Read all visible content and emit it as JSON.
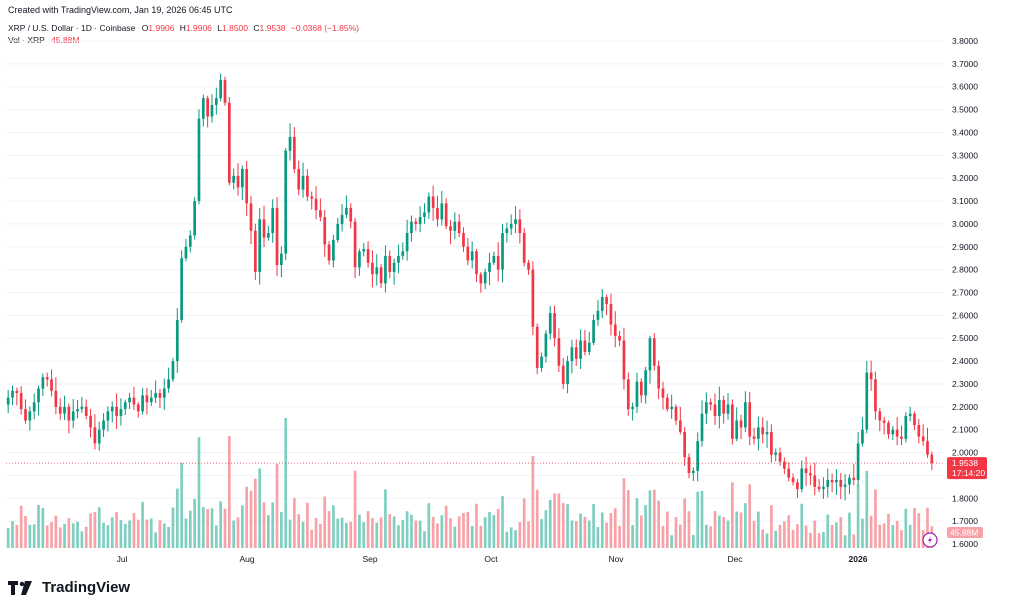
{
  "header": {
    "created_text": "Created with TradingView.com, Jan 19, 2026 06:45 UTC"
  },
  "legend": {
    "symbol": "XRP / U.S. Dollar · 1D · Coinbase",
    "open_label": "O",
    "open": "1.9906",
    "high_label": "H",
    "high": "1.9906",
    "low_label": "L",
    "low": "1.8500",
    "close_label": "C",
    "close": "1.9538",
    "change": "−0.0368 (−1.85%)",
    "vol_label": "Vol · XRP",
    "vol_value": "45.88M"
  },
  "price_tag": {
    "price": "1.9538",
    "countdown": "17:14:20"
  },
  "volume_tag": "45.88M",
  "brand": {
    "name": "TradingView"
  },
  "colors": {
    "up": "#089981",
    "down": "#f23645",
    "up_vol": "#7fcfc1",
    "down_vol": "#f8a2a8"
  },
  "chart_data": {
    "type": "candlestick",
    "y_axis_ticks": [
      "3.8000",
      "3.7000",
      "3.6000",
      "3.5000",
      "3.4000",
      "3.3000",
      "3.2000",
      "3.1000",
      "3.0000",
      "2.9000",
      "2.8000",
      "2.7000",
      "2.6000",
      "2.5000",
      "2.4000",
      "2.3000",
      "2.2000",
      "2.1000",
      "2.0000",
      "1.9000",
      "1.8000",
      "1.7000",
      "1.6000"
    ],
    "y_range": [
      1.6,
      3.8
    ],
    "x_axis_labels": [
      "Jul",
      "Aug",
      "Sep",
      "Oct",
      "Nov",
      "Dec",
      "2026"
    ],
    "x_axis_label_bold": "2026",
    "last_price": 1.9538,
    "close_series": [
      2.24,
      2.27,
      2.26,
      2.19,
      2.14,
      2.18,
      2.22,
      2.28,
      2.33,
      2.32,
      2.27,
      2.2,
      2.17,
      2.2,
      2.14,
      2.18,
      2.19,
      2.2,
      2.16,
      2.11,
      2.04,
      2.1,
      2.14,
      2.18,
      2.2,
      2.16,
      2.19,
      2.22,
      2.24,
      2.21,
      2.18,
      2.25,
      2.22,
      2.24,
      2.26,
      2.24,
      2.28,
      2.32,
      2.4,
      2.58,
      2.85,
      2.9,
      2.95,
      3.1,
      3.46,
      3.55,
      3.47,
      3.52,
      3.55,
      3.63,
      3.53,
      3.18,
      3.21,
      3.16,
      3.24,
      3.09,
      2.97,
      2.79,
      3.02,
      2.94,
      2.96,
      3.07,
      2.82,
      2.87,
      3.32,
      3.38,
      3.24,
      3.15,
      3.21,
      3.12,
      3.11,
      3.06,
      3.03,
      2.91,
      2.84,
      2.93,
      3.0,
      3.04,
      3.07,
      3.01,
      2.81,
      2.88,
      2.89,
      2.83,
      2.78,
      2.81,
      2.74,
      2.86,
      2.79,
      2.83,
      2.86,
      2.88,
      2.96,
      3.01,
      3.0,
      3.03,
      3.05,
      3.12,
      3.07,
      3.02,
      3.09,
      2.99,
      2.97,
      3.01,
      2.96,
      2.9,
      2.84,
      2.88,
      2.78,
      2.74,
      2.79,
      2.83,
      2.86,
      2.8,
      2.96,
      2.98,
      3.0,
      3.02,
      2.96,
      2.83,
      2.8,
      2.55,
      2.37,
      2.42,
      2.52,
      2.61,
      2.5,
      2.38,
      2.3,
      2.4,
      2.46,
      2.41,
      2.49,
      2.44,
      2.48,
      2.58,
      2.62,
      2.68,
      2.65,
      2.56,
      2.51,
      2.49,
      2.32,
      2.19,
      2.2,
      2.31,
      2.25,
      2.36,
      2.5,
      2.38,
      2.28,
      2.24,
      2.19,
      2.2,
      2.14,
      2.09,
      1.98,
      1.91,
      1.92,
      2.05,
      2.17,
      2.22,
      2.21,
      2.16,
      2.23,
      2.17,
      2.21,
      2.06,
      2.14,
      2.11,
      2.22,
      2.07,
      2.06,
      2.11,
      2.08,
      2.09,
      1.99,
      2.0,
      1.96,
      1.93,
      1.89,
      1.87,
      1.84,
      1.93,
      1.91,
      1.9,
      1.85,
      1.84,
      1.85,
      1.88,
      1.87,
      1.88,
      1.85,
      1.86,
      1.89,
      1.88,
      2.04,
      2.1,
      2.35,
      2.32,
      2.18,
      2.14,
      2.13,
      2.08,
      2.1,
      2.07,
      2.06,
      2.16,
      2.17,
      2.12,
      2.07,
      2.05,
      1.9906,
      1.9538
    ],
    "volume_relative_max": 1.0
  }
}
